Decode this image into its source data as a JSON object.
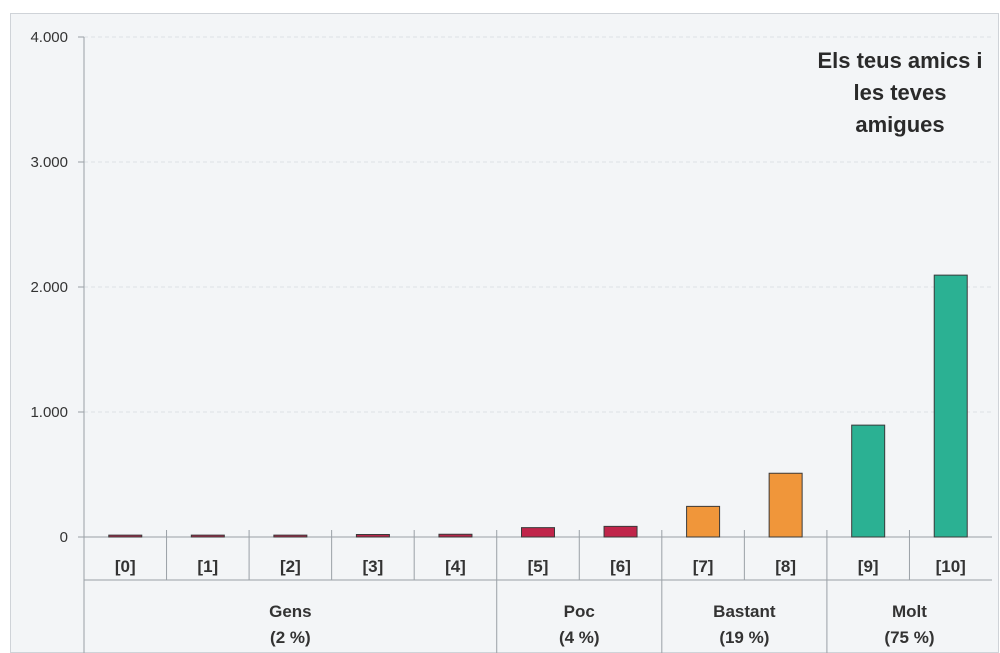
{
  "chart_data": {
    "type": "bar",
    "title": [
      "Els teus amics i",
      "les teves",
      "amigues"
    ],
    "categories": [
      "[0]",
      "[1]",
      "[2]",
      "[3]",
      "[4]",
      "[5]",
      "[6]",
      "[7]",
      "[8]",
      "[9]",
      "[10]"
    ],
    "values": [
      15,
      15,
      15,
      20,
      22,
      75,
      85,
      245,
      510,
      895,
      2095
    ],
    "bar_colors": [
      "#b5274a",
      "#b5274a",
      "#b5274a",
      "#b5274a",
      "#b5274a",
      "#c0254a",
      "#c0254a",
      "#f0963a",
      "#f0963a",
      "#2bb193",
      "#2bb193"
    ],
    "groups": [
      {
        "name": "Gens",
        "share": "(2 %)",
        "from": 0,
        "to": 4
      },
      {
        "name": "Poc",
        "share": "(4 %)",
        "from": 5,
        "to": 6
      },
      {
        "name": "Bastant",
        "share": "(19 %)",
        "from": 7,
        "to": 8
      },
      {
        "name": "Molt",
        "share": "(75 %)",
        "from": 9,
        "to": 10
      }
    ],
    "ylim": [
      0,
      4000
    ],
    "yticks": [
      0,
      1000,
      2000,
      3000,
      4000
    ],
    "ytick_labels": [
      "0",
      "1.000",
      "2.000",
      "3.000",
      "4.000"
    ],
    "grid": true,
    "xlabel": "",
    "ylabel": ""
  }
}
